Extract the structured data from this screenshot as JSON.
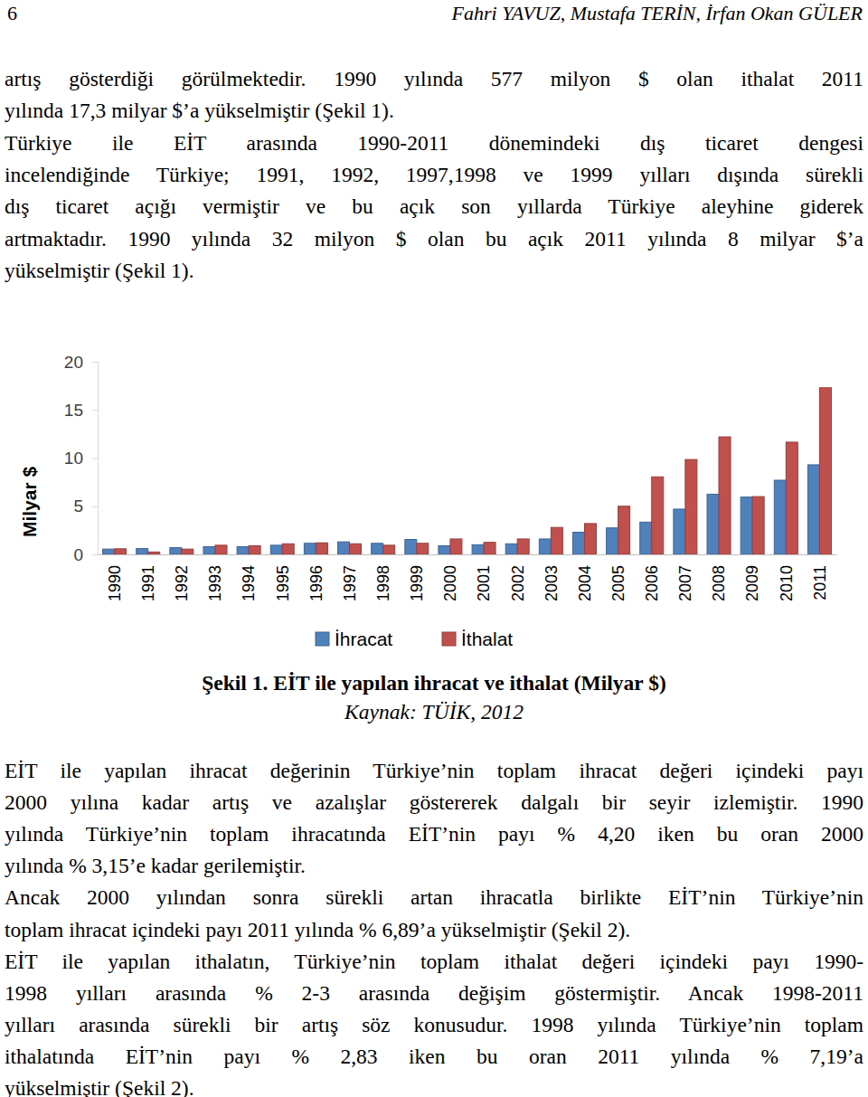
{
  "header": {
    "page": "6",
    "authors": "Fahri YAVUZ, Mustafa TERİN, İrfan Okan GÜLER"
  },
  "text_before": [
    [
      "artış gösterdiği görülmektedir.  1990 yılında 577 milyon $ olan ithalat 2011",
      "yılında 17,3 milyar $’a yükselmiştir (Şekil 1)."
    ],
    [
      "Türkiye ile EİT arasında 1990-2011 dönemindeki dış ticaret dengesi",
      "incelendiğinde Türkiye; 1991, 1992, 1997,1998 ve 1999 yılları dışında sürekli",
      "dış ticaret açığı vermiştir ve bu açık son yıllarda Türkiye aleyhine giderek",
      "artmaktadır. 1990 yılında 32 milyon $ olan bu açık 2011 yılında 8 milyar $’a",
      "yükselmiştir (Şekil 1)."
    ]
  ],
  "chart_data": {
    "type": "bar",
    "categories": [
      "1990",
      "1991",
      "1992",
      "1993",
      "1994",
      "1995",
      "1996",
      "1997",
      "1998",
      "1999",
      "2000",
      "2001",
      "2002",
      "2003",
      "2004",
      "2005",
      "2006",
      "2007",
      "2008",
      "2009",
      "2010",
      "2011"
    ],
    "series": [
      {
        "name": "İhracat",
        "color": "#4f81bd",
        "values": [
          0.55,
          0.6,
          0.7,
          0.8,
          0.8,
          0.95,
          1.15,
          1.3,
          1.15,
          1.55,
          0.9,
          1.0,
          1.1,
          1.6,
          2.3,
          2.75,
          3.35,
          4.7,
          6.25,
          5.95,
          7.7,
          9.3
        ]
      },
      {
        "name": "İthalat",
        "color": "#c0504d",
        "values": [
          0.58,
          0.25,
          0.55,
          0.95,
          0.9,
          1.1,
          1.2,
          1.1,
          0.95,
          1.15,
          1.6,
          1.25,
          1.6,
          2.8,
          3.2,
          5.0,
          8.05,
          9.85,
          12.2,
          6.0,
          11.65,
          17.3
        ]
      }
    ],
    "ylabel": "Milyar $",
    "ylim": [
      0,
      20
    ],
    "yticks": [
      0,
      5,
      10,
      15,
      20
    ],
    "grid": false,
    "legend": "bottom"
  },
  "caption": {
    "title": "Şekil 1. EİT ile yapılan ihracat ve ithalat (Milyar $)",
    "source": "Kaynak: TÜİK, 2012"
  },
  "text_after": [
    [
      "EİT ile yapılan ihracat değerinin Türkiye’nin toplam ihracat değeri içindeki payı",
      "2000 yılına kadar artış ve azalışlar göstererek dalgalı bir seyir izlemiştir. 1990",
      "yılında Türkiye’nin toplam ihracatında EİT’nin payı % 4,20 iken bu oran 2000",
      "yılında % 3,15’e kadar gerilemiştir."
    ],
    [
      "Ancak 2000 yılından sonra sürekli artan ihracatla birlikte EİT’nin Türkiye’nin",
      "toplam ihracat içindeki payı 2011 yılında % 6,89’a yükselmiştir (Şekil 2)."
    ],
    [
      "EİT ile yapılan ithalatın, Türkiye’nin toplam ithalat değeri içindeki payı 1990-",
      "1998 yılları arasında % 2-3 arasında değişim göstermiştir. Ancak 1998-2011",
      "yılları arasında sürekli bir artış söz konusudur. 1998 yılında Türkiye’nin toplam",
      "ithalatında EİT’nin payı % 2,83 iken bu oran 2011 yılında % 7,19’a",
      "yükselmiştir (Şekil 2)."
    ]
  ]
}
